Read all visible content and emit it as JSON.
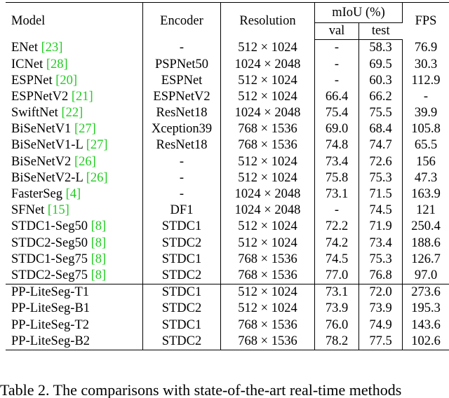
{
  "headers": {
    "model": "Model",
    "encoder": "Encoder",
    "resolution": "Resolution",
    "miou": "mIoU (%)",
    "val": "val",
    "test": "test",
    "fps": "FPS"
  },
  "rows": [
    {
      "name": "ENet ",
      "ref": "[23]",
      "encoder": "-",
      "res": "512 × 1024",
      "val": "-",
      "test": "58.3",
      "fps": "76.9"
    },
    {
      "name": "ICNet ",
      "ref": "[28]",
      "encoder": "PSPNet50",
      "res": "1024 × 2048",
      "val": "-",
      "test": "69.5",
      "fps": "30.3"
    },
    {
      "name": "ESPNet ",
      "ref": "[20]",
      "encoder": "ESPNet",
      "res": "512 × 1024",
      "val": "-",
      "test": "60.3",
      "fps": "112.9"
    },
    {
      "name": "ESPNetV2 ",
      "ref": "[21]",
      "encoder": "ESPNetV2",
      "res": "512 × 1024",
      "val": "66.4",
      "test": "66.2",
      "fps": "-"
    },
    {
      "name": "SwiftNet ",
      "ref": "[22]",
      "encoder": "ResNet18",
      "res": "1024 × 2048",
      "val": "75.4",
      "test": "75.5",
      "fps": "39.9"
    },
    {
      "name": "BiSeNetV1 ",
      "ref": "[27]",
      "encoder": "Xception39",
      "res": "768 × 1536",
      "val": "69.0",
      "test": "68.4",
      "fps": "105.8"
    },
    {
      "name": "BiSeNetV1-L ",
      "ref": "[27]",
      "encoder": "ResNet18",
      "res": "768 × 1536",
      "val": "74.8",
      "test": "74.7",
      "fps": "65.5"
    },
    {
      "name": "BiSeNetV2 ",
      "ref": "[26]",
      "encoder": "-",
      "res": "512 × 1024",
      "val": "73.4",
      "test": "72.6",
      "fps": "156"
    },
    {
      "name": "BiSeNetV2-L ",
      "ref": "[26]",
      "encoder": "-",
      "res": "512 × 1024",
      "val": "75.8",
      "test": "75.3",
      "fps": "47.3"
    },
    {
      "name": "FasterSeg ",
      "ref": "[4]",
      "encoder": "-",
      "res": "1024 × 2048",
      "val": "73.1",
      "test": "71.5",
      "fps": "163.9"
    },
    {
      "name": "SFNet ",
      "ref": "[15]",
      "encoder": "DF1",
      "res": "1024 × 2048",
      "val": "-",
      "test": "74.5",
      "fps": "121"
    },
    {
      "name": "STDC1-Seg50 ",
      "ref": "[8]",
      "encoder": "STDC1",
      "res": "512 × 1024",
      "val": "72.2",
      "test": "71.9",
      "fps": "250.4"
    },
    {
      "name": "STDC2-Seg50 ",
      "ref": "[8]",
      "encoder": "STDC2",
      "res": "512 × 1024",
      "val": "74.2",
      "test": "73.4",
      "fps": "188.6"
    },
    {
      "name": "STDC1-Seg75 ",
      "ref": "[8]",
      "encoder": "STDC1",
      "res": "768 × 1536",
      "val": "74.5",
      "test": "75.3",
      "fps": "126.7"
    },
    {
      "name": "STDC2-Seg75 ",
      "ref": "[8]",
      "encoder": "STDC2",
      "res": "768 × 1536",
      "val": "77.0",
      "test": "76.8",
      "fps": "97.0"
    }
  ],
  "ours": [
    {
      "name": "PP-LiteSeg-T1",
      "encoder": "STDC1",
      "res": "512 × 1024",
      "val": "73.1",
      "test": "72.0",
      "fps": "273.6"
    },
    {
      "name": "PP-LiteSeg-B1",
      "encoder": "STDC2",
      "res": "512 × 1024",
      "val": "73.9",
      "test": "73.9",
      "fps": "195.3"
    },
    {
      "name": "PP-LiteSeg-T2",
      "encoder": "STDC1",
      "res": "768 × 1536",
      "val": "76.0",
      "test": "74.9",
      "fps": "143.6"
    },
    {
      "name": "PP-LiteSeg-B2",
      "encoder": "STDC2",
      "res": "768 × 1536",
      "val": "78.2",
      "test": "77.5",
      "fps": "102.6"
    }
  ],
  "bold_cells": {
    "fps_row": 0,
    "val_row": 3,
    "test_row": 3
  },
  "ref_color": "#22cc22",
  "caption": "Table 2. The comparisons with state-of-the-art real-time methods"
}
